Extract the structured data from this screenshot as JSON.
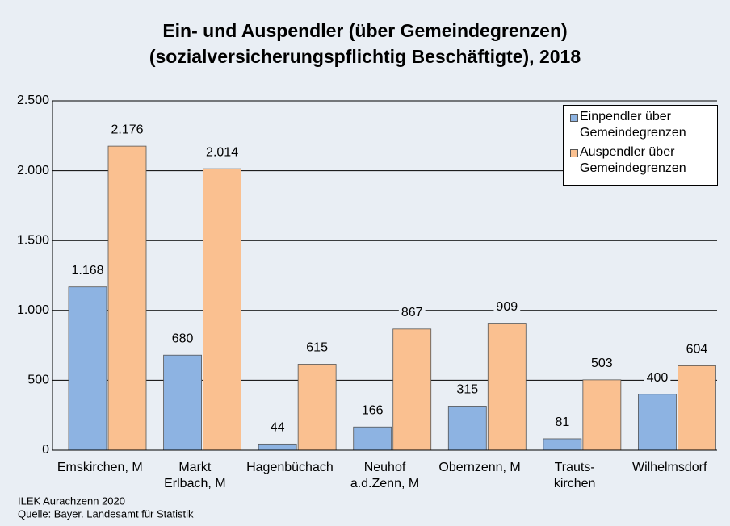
{
  "chart_data": {
    "type": "bar",
    "title": [
      "Ein- und Auspendler (über Gemeindegrenzen)",
      "(sozialversicherungspflichtig Beschäftigte), 2018"
    ],
    "categories": [
      [
        "Emskirchen, M"
      ],
      [
        "Markt",
        "Erlbach, M"
      ],
      [
        "Hagenbüchach"
      ],
      [
        "Neuhof",
        "a.d.Zenn, M"
      ],
      [
        "Obernzenn, M"
      ],
      [
        "Trauts-",
        "kirchen"
      ],
      [
        "Wilhelmsdorf"
      ]
    ],
    "series": [
      {
        "name": "Einpendler über Gemeindegrenzen",
        "color": "#8db3e2",
        "values": [
          1168,
          680,
          44,
          166,
          315,
          81,
          400
        ],
        "value_labels": [
          "1.168",
          "680",
          "44",
          "166",
          "315",
          "81",
          "400"
        ]
      },
      {
        "name": "Auspendler über Gemeindegrenzen",
        "color": "#fac090",
        "values": [
          2176,
          2014,
          615,
          867,
          909,
          503,
          604
        ],
        "value_labels": [
          "2.176",
          "2.014",
          "615",
          "867",
          "909",
          "503",
          "604"
        ]
      }
    ],
    "ylim": [
      0,
      2500
    ],
    "yticks": [
      0,
      500,
      {
        "value": 1000,
        "label": "1.000"
      },
      {
        "value": 1500,
        "label": "1.500"
      },
      {
        "value": 2000,
        "label": "2.000"
      },
      {
        "value": 2500,
        "label": "2.500"
      }
    ],
    "grid": true,
    "legend": "top-right",
    "footnotes": [
      "ILEK Aurachzenn 2020",
      "Quelle: Bayer. Landesamt für Statistik"
    ]
  }
}
